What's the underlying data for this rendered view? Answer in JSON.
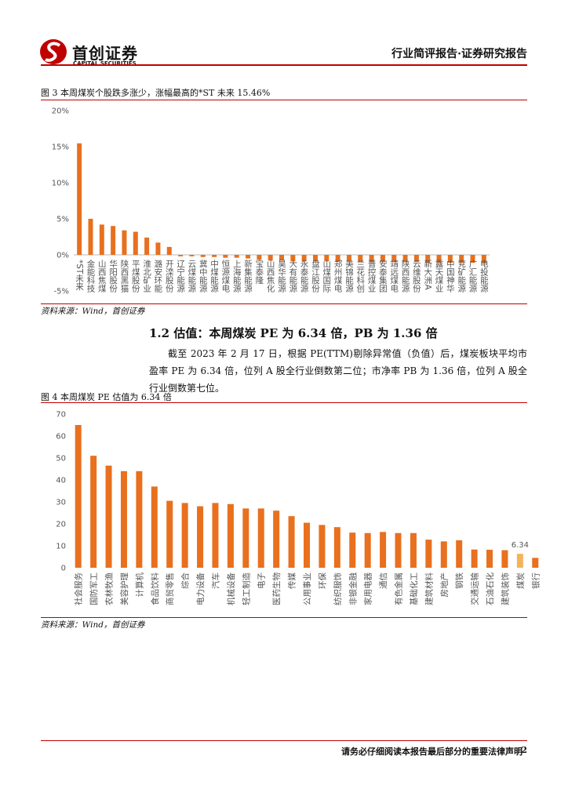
{
  "header": {
    "logo_cn": "首创证券",
    "logo_en": "CAPITAL SECURITIES",
    "report_type": "行业简评报告·证券研究报告"
  },
  "section": {
    "heading": "1.2 估值：本周煤炭 PE 为 6.34 倍，PB 为 1.36 倍",
    "paragraph": "截至 2023 年 2 月 17 日，根据 PE(TTM)剔除异常值（负值）后，煤炭板块平均市盈率 PE 为 6.34 倍，位列 A 股全行业倒数第二位；市净率 PB 为 1.36 倍，位列 A 股全行业倒数第七位。"
  },
  "chart_data": [
    {
      "type": "bar",
      "title": "图 3 本周煤炭个股跌多涨少，涨幅最高的*ST 未来 15.46%",
      "source": "资料来源：Wind，首创证券",
      "categories": [
        "*ST未来",
        "金能科技",
        "山西焦煤",
        "华阳股份",
        "陕西黑猫",
        "平煤股份",
        "淮北矿业",
        "潞安环能",
        "开滦股份",
        "辽宁能源",
        "云煤能源",
        "冀中能源",
        "中煤能源",
        "恒源煤电",
        "上海能源",
        "新集能源",
        "宝泰隆",
        "山西焦化",
        "昊华能源",
        "大有能源",
        "永泰能源",
        "盘江股份",
        "山煤国际",
        "郑州煤电",
        "美锦能源",
        "兰花科创",
        "晋控煤业",
        "安泰集团",
        "靖远煤电",
        "陕西能源",
        "云维股份",
        "新大洲A",
        "露天煤业",
        "中国神华",
        "兖矿能源",
        "广汇能源",
        "电投能源"
      ],
      "values": [
        15.46,
        5.0,
        4.2,
        4.0,
        3.4,
        3.2,
        2.4,
        1.7,
        1.1,
        -0.2,
        -0.2,
        -0.3,
        -0.3,
        -0.4,
        -0.4,
        -0.5,
        -0.7,
        -0.8,
        -0.8,
        -0.9,
        -0.9,
        -0.9,
        -0.9,
        -0.9,
        -0.9,
        -1.0,
        -1.0,
        -1.0,
        -1.0,
        -1.0,
        -1.0,
        -1.1,
        -1.1,
        -1.1,
        -1.1,
        -1.1,
        -1.1
      ],
      "color": "#e8701e",
      "ylim": [
        -5,
        20
      ],
      "yticks": [
        {
          "value": -5,
          "label": "-5%"
        },
        {
          "value": 0,
          "label": "0%"
        },
        {
          "value": 5,
          "label": "5%"
        },
        {
          "value": 10,
          "label": "10%"
        },
        {
          "value": 15,
          "label": "15%"
        },
        {
          "value": 20,
          "label": "20%"
        }
      ],
      "grid": false
    },
    {
      "type": "bar",
      "title": "图 4 本周煤炭 PE 估值为 6.34 倍",
      "source": "资料来源：Wind，首创证券",
      "categories": [
        "社会服务",
        "国防军工",
        "农林牧渔",
        "美容护理",
        "计算机",
        "食品饮料",
        "商贸零售",
        "综合",
        "电力设备",
        "汽车",
        "机械设备",
        "轻工制造",
        "电子",
        "医药生物",
        "传媒",
        "公用事业",
        "环保",
        "纺织服饰",
        "非银金融",
        "家用电器",
        "通信",
        "有色金属",
        "基础化工",
        "建筑材料",
        "房地产",
        "钢铁",
        "交通运输",
        "石油石化",
        "建筑装饰",
        "煤炭",
        "银行"
      ],
      "values": [
        65,
        51,
        46.5,
        44,
        44,
        37,
        30.5,
        29.5,
        28,
        29.5,
        29,
        27,
        27,
        26,
        23.5,
        20.5,
        19.5,
        18.5,
        16,
        15.8,
        16.3,
        15.8,
        15.8,
        12.8,
        12,
        12.5,
        8.3,
        8.2,
        8,
        6.34,
        4.5
      ],
      "value_labels": [
        null,
        null,
        null,
        null,
        null,
        null,
        null,
        null,
        null,
        null,
        null,
        null,
        null,
        null,
        null,
        null,
        null,
        null,
        null,
        null,
        null,
        null,
        null,
        null,
        null,
        null,
        null,
        null,
        null,
        "6.34",
        null
      ],
      "colors": [
        "#e8701e",
        "#e8701e",
        "#e8701e",
        "#e8701e",
        "#e8701e",
        "#e8701e",
        "#e8701e",
        "#e8701e",
        "#e8701e",
        "#e8701e",
        "#e8701e",
        "#e8701e",
        "#e8701e",
        "#e8701e",
        "#e8701e",
        "#e8701e",
        "#e8701e",
        "#e8701e",
        "#e8701e",
        "#e8701e",
        "#e8701e",
        "#e8701e",
        "#e8701e",
        "#e8701e",
        "#e8701e",
        "#e8701e",
        "#e8701e",
        "#e8701e",
        "#e8701e",
        "#f4b35a",
        "#e8701e"
      ],
      "ylim": [
        0,
        70
      ],
      "yticks": [
        0,
        10,
        20,
        30,
        40,
        50,
        60,
        70
      ],
      "grid": false
    }
  ],
  "footer": {
    "notice": "请务必仔细阅读本报告最后部分的重要法律声明",
    "page": "2"
  }
}
